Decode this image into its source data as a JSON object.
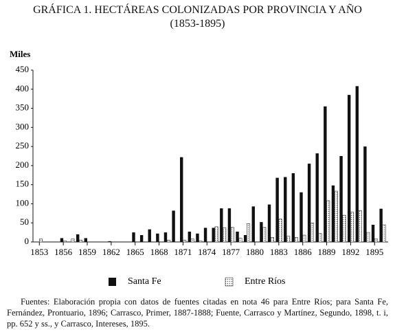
{
  "chart_data": {
    "type": "bar",
    "title": "GRÁFICA 1. HECTÁREAS COLONIZADAS POR PROVINCIA Y AÑO",
    "subtitle": "(1853-1895)",
    "y_label": "Miles",
    "x": [
      1853,
      1854,
      1855,
      1856,
      1857,
      1858,
      1859,
      1860,
      1861,
      1862,
      1863,
      1864,
      1865,
      1866,
      1867,
      1868,
      1869,
      1870,
      1871,
      1872,
      1873,
      1874,
      1875,
      1876,
      1877,
      1878,
      1879,
      1880,
      1881,
      1882,
      1883,
      1884,
      1885,
      1886,
      1887,
      1888,
      1889,
      1890,
      1891,
      1892,
      1893,
      1894,
      1895,
      1896
    ],
    "xlim": [
      1852.2,
      1896.7
    ],
    "xticks": [
      1853,
      1856,
      1859,
      1862,
      1865,
      1868,
      1871,
      1874,
      1877,
      1880,
      1883,
      1886,
      1889,
      1892,
      1895
    ],
    "ylim": [
      0,
      450
    ],
    "yticks": [
      0,
      50,
      100,
      150,
      200,
      250,
      300,
      350,
      400,
      450
    ],
    "series": [
      {
        "name": "Santa Fe",
        "color": "#111111",
        "values": [
          0,
          0,
          0,
          10,
          0,
          20,
          10,
          0,
          0,
          2,
          0,
          0,
          25,
          18,
          33,
          22,
          25,
          82,
          222,
          27,
          22,
          37,
          37,
          88,
          88,
          27,
          18,
          93,
          52,
          98,
          168,
          170,
          180,
          130,
          205,
          232,
          355,
          148,
          225,
          385,
          408,
          250,
          45,
          87
        ]
      },
      {
        "name": "Entre Ríos",
        "color": "#d9d9d9",
        "values": [
          8,
          0,
          0,
          3,
          8,
          5,
          0,
          0,
          0,
          0,
          0,
          0,
          0,
          0,
          0,
          0,
          5,
          0,
          5,
          8,
          3,
          0,
          40,
          37,
          38,
          10,
          48,
          0,
          38,
          12,
          60,
          15,
          12,
          18,
          50,
          22,
          108,
          133,
          70,
          78,
          82,
          25,
          8,
          45
        ]
      }
    ],
    "legend": "bottom",
    "footnote": "Fuentes: Elaboración propia con datos de fuentes citadas en nota 46 para Entre Ríos; para Santa Fe, Fernández, Prontuario, 1896; Carrasco, Primer, 1887-1888; Fuente, Carrasco y Martínez, Segundo, 1898, t. i, pp. 652 y ss., y Carrasco, Intereses, 1895."
  }
}
